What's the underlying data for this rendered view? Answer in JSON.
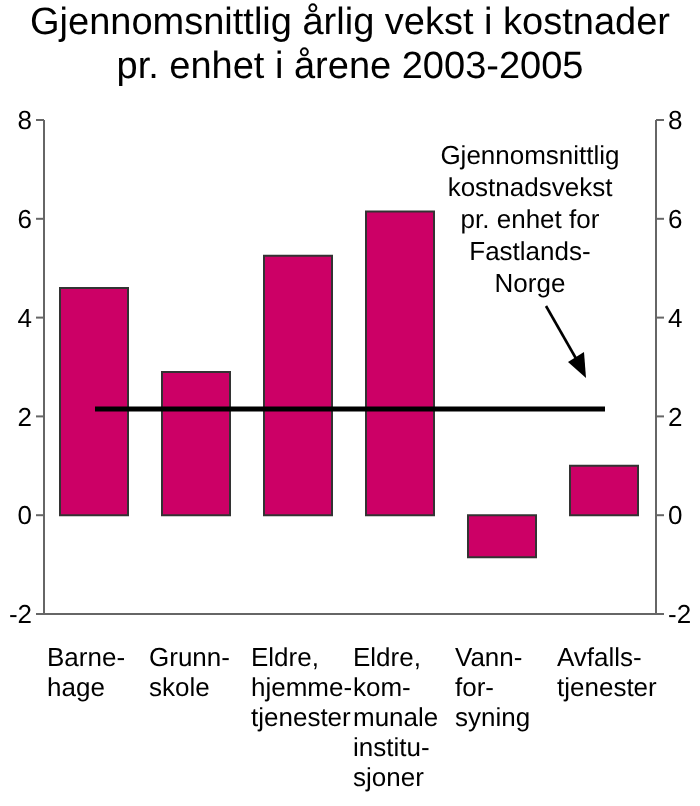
{
  "chart_data": {
    "type": "bar",
    "title": "Gjennomsnittlig årlig vekst i kostnader\npr. enhet i årene 2003-2005",
    "categories": [
      "Barne-\nhage",
      "Grunn-\nskole",
      "Eldre,\nhjemme-\ntjenester",
      "Eldre,\nkom-\nmunale\ninstitu-\nsjoner",
      "Vann-\nfor-\nsyning",
      "Avfalls-\ntjenester"
    ],
    "values": [
      4.6,
      2.9,
      5.25,
      6.15,
      -0.85,
      1.0
    ],
    "color": "#cc0066",
    "ylim": [
      -2,
      8
    ],
    "yticks": [
      -2,
      0,
      2,
      4,
      6,
      8
    ],
    "y2lim": [
      -2,
      8
    ],
    "y2ticks": [
      -2,
      0,
      2,
      4,
      6,
      8
    ],
    "ref_lines": [
      {
        "axis": "y",
        "value": 2.15,
        "label": "Gjennomsnittlig\nkostnadsvekst\npr. enhet for\nFastlands-\nNorge",
        "color": "#000000"
      }
    ]
  }
}
